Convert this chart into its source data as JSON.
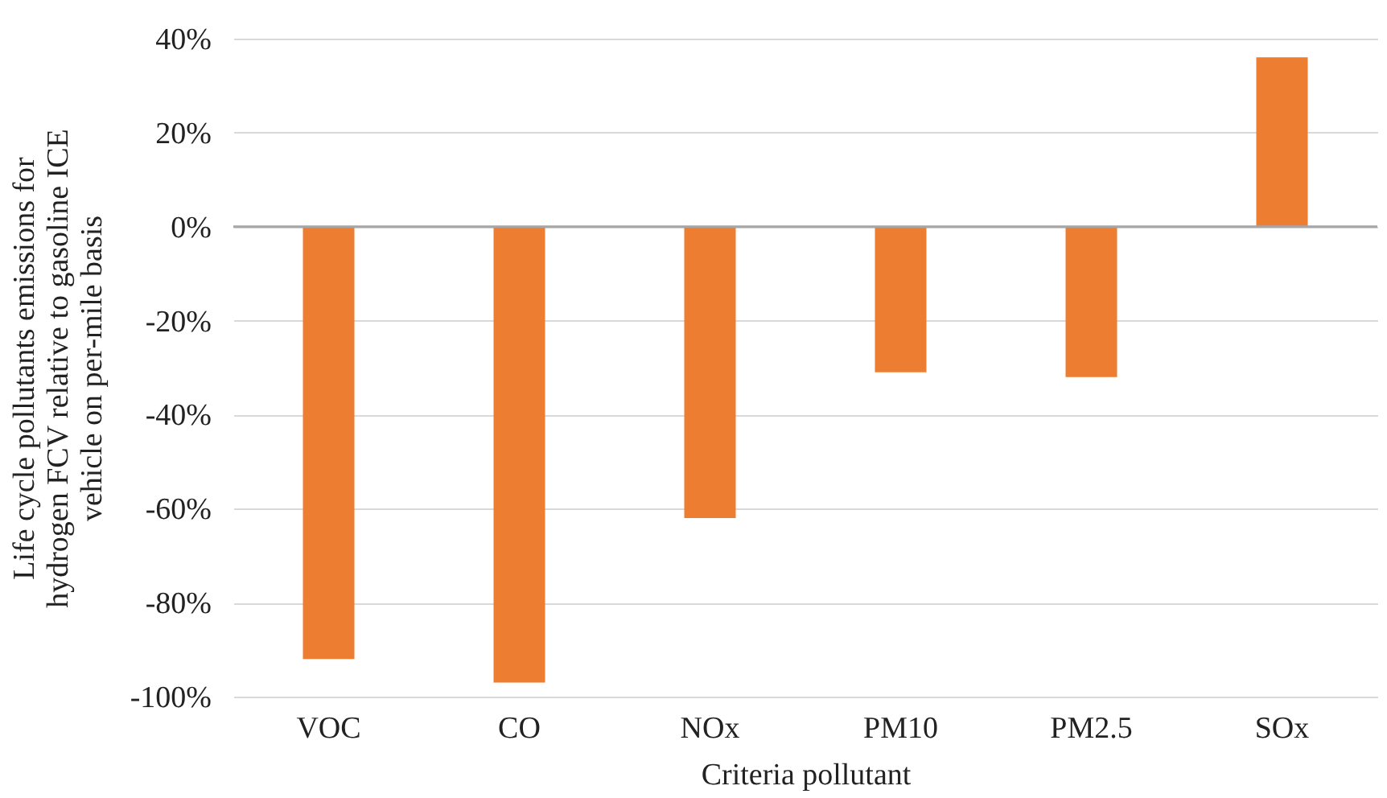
{
  "chart_data": {
    "type": "bar",
    "xlabel": "Criteria pollutant",
    "ylabel": "Life cycle pollutants emissions for\nhydrogen FCV relative to gasoline ICE\nvehicle on per-mile basis",
    "categories": [
      "VOC",
      "CO",
      "NOx",
      "PM10",
      "PM2.5",
      "SOx"
    ],
    "values": [
      -92,
      -97,
      -62,
      -31,
      -32,
      36
    ],
    "color": "#ed7d31",
    "ylim": [
      -100,
      40
    ],
    "yticks": [
      {
        "value": -100,
        "label": "-100%"
      },
      {
        "value": -80,
        "label": "-80%"
      },
      {
        "value": -60,
        "label": "-60%"
      },
      {
        "value": -40,
        "label": "-40%"
      },
      {
        "value": -20,
        "label": "-20%"
      },
      {
        "value": 0,
        "label": "0%"
      },
      {
        "value": 20,
        "label": "20%"
      },
      {
        "value": 40,
        "label": "40%"
      }
    ],
    "grid": "y"
  }
}
